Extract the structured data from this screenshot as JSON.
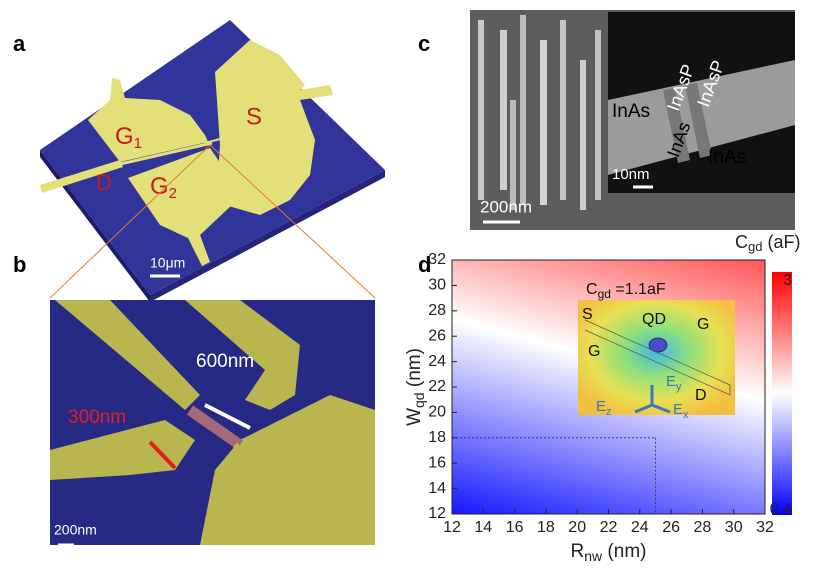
{
  "panel_labels": [
    "a",
    "b",
    "c",
    "d"
  ],
  "panel_a": {
    "gate1": {
      "main": "G",
      "sub": "1"
    },
    "source": "S",
    "drain": "D",
    "gate2": {
      "main": "G",
      "sub": "2"
    },
    "scale_bar": "10μm"
  },
  "panel_b": {
    "gap": "600nm",
    "width": "300nm",
    "scale_bar": "200nm"
  },
  "panel_c": {
    "labels": [
      "InAs",
      "InAsP",
      "InAsP",
      "InAs",
      "InAs"
    ],
    "inset_scale_bar": "10nm",
    "scale_bar": "200nm"
  },
  "chart_data": {
    "type": "heatmap",
    "x_label": {
      "main": "R",
      "sub": "nw",
      "unit": " (nm)"
    },
    "y_label": {
      "main": "W",
      "sub": "qd",
      "unit": " (nm)"
    },
    "xlim": [
      12,
      32
    ],
    "xticks": [
      12,
      14,
      16,
      18,
      20,
      22,
      24,
      26,
      28,
      30,
      32
    ],
    "ylim": [
      12,
      32
    ],
    "yticks": [
      12,
      14,
      16,
      18,
      20,
      22,
      24,
      26,
      28,
      30,
      32
    ],
    "colorbar": {
      "label": {
        "main": "C",
        "sub": "gd",
        "unit": " (aF)"
      },
      "lim": [
        0.4,
        3
      ],
      "ticks": [
        0.4,
        3
      ],
      "colors": [
        "#0000ff",
        "#ffffff",
        "#ff0000"
      ]
    },
    "guide": {
      "x": 25,
      "y": 18
    },
    "inset": {
      "annotation": {
        "main": "C",
        "sub": "gd",
        "unit": " =1.1aF"
      },
      "labels": [
        "S",
        "QD",
        "G",
        "G",
        "D"
      ],
      "axes": [
        {
          "main": "E",
          "sub": "z"
        },
        {
          "main": "E",
          "sub": "y"
        },
        {
          "main": "E",
          "sub": "x"
        }
      ]
    }
  }
}
